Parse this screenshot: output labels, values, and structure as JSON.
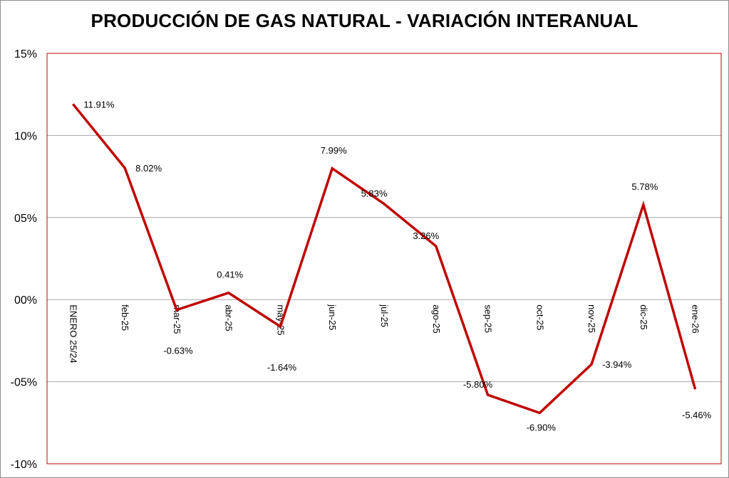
{
  "chart_data": {
    "type": "line",
    "title": "PRODUCCIÓN DE GAS NATURAL - VARIACIÓN INTERANUAL",
    "categories": [
      "ENERO 25/24",
      "feb-25",
      "mar-25",
      "abr-25",
      "may-25",
      "jun-25",
      "jul-25",
      "ago-25",
      "sep-25",
      "oct-25",
      "nov-25",
      "dic-25",
      "ene-26"
    ],
    "series": [
      {
        "values": [
          11.91,
          8.02,
          -0.63,
          0.41,
          -1.64,
          7.99,
          5.83,
          3.26,
          -5.8,
          -6.9,
          -3.94,
          5.78,
          -5.46
        ],
        "labels": [
          "11.91%",
          "8.02%",
          "-0.63%",
          "0.41%",
          "-1.64%",
          "7.99%",
          "5.83%",
          "3.26%",
          "-5.80%",
          "-6.90%",
          "-3.94%",
          "5.78%",
          "-5.46%"
        ]
      }
    ],
    "yticks": [
      "15%",
      "10%",
      "05%",
      "00%",
      "-05%",
      "-10%"
    ],
    "ylim": [
      -10,
      15
    ],
    "grid": true,
    "colors": {
      "line": "#c00000",
      "plot_border": "#c00000",
      "grid": "#a6a6a6"
    }
  }
}
